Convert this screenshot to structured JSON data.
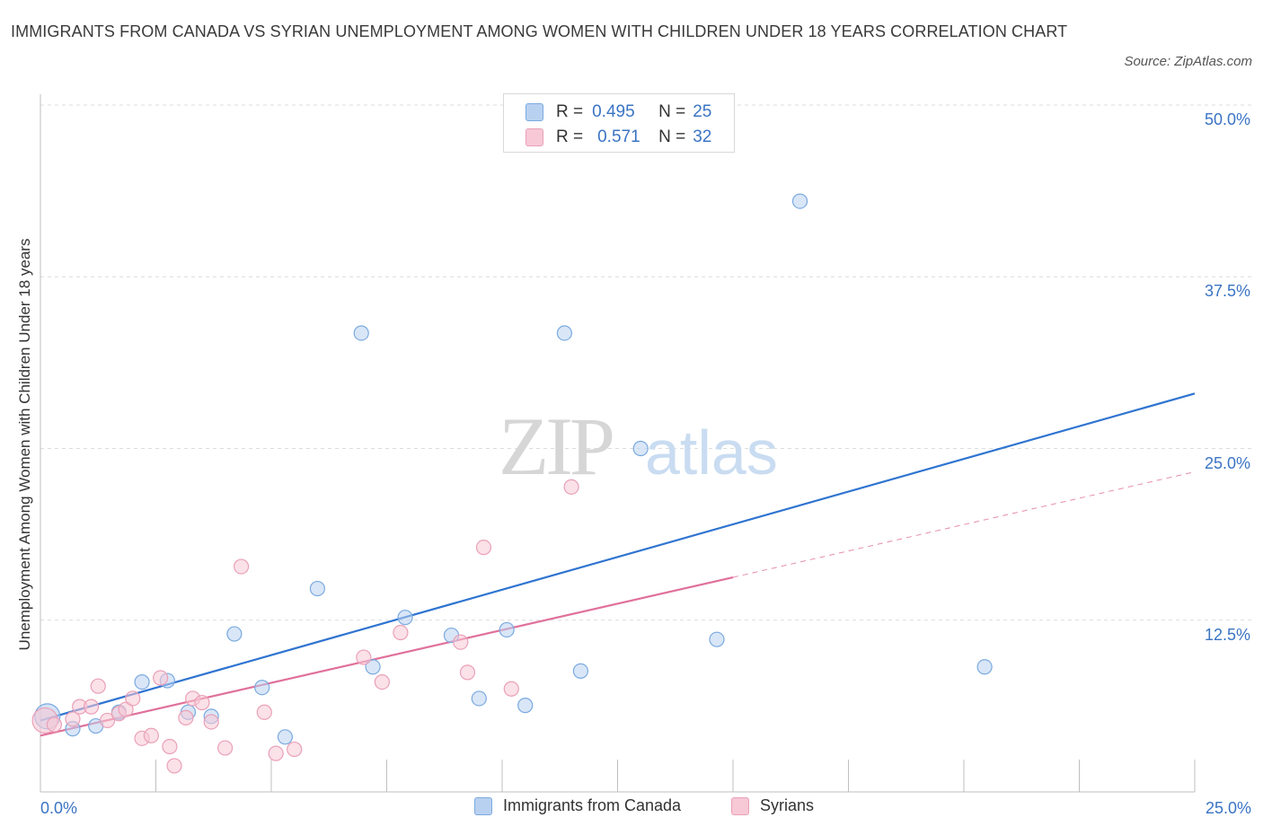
{
  "chart_data": {
    "type": "scatter",
    "title": "IMMIGRANTS FROM CANADA VS SYRIAN UNEMPLOYMENT AMONG WOMEN WITH CHILDREN UNDER 18 YEARS CORRELATION CHART",
    "source": "Source: ZipAtlas.com",
    "xlabel": "",
    "ylabel": "Unemployment Among Women with Children Under 18 years",
    "xlim": [
      0,
      25
    ],
    "ylim": [
      0,
      50
    ],
    "x_tick_labels": [
      "0.0%",
      "25.0%"
    ],
    "y_tick_labels": [
      "12.5%",
      "25.0%",
      "37.5%",
      "50.0%"
    ],
    "y_ticks": [
      12.5,
      25,
      37.5,
      50
    ],
    "x_minor_ticks": [
      2.5,
      5,
      7.5,
      10,
      12.5,
      15,
      17.5,
      20,
      22.5,
      25
    ],
    "grid": true,
    "watermark": {
      "zip": "ZIP",
      "atlas": "atlas"
    },
    "series": [
      {
        "name": "Immigrants from Canada",
        "color": "#7aaae0",
        "fill": "#b9d1f0",
        "line_color": "#2f74d0",
        "r_label": "R =",
        "r_value": "0.495",
        "n_label": "N =",
        "n_value": "25",
        "trend": {
          "x0": 0.0,
          "y0": 5.2,
          "x1": 25.0,
          "y1": 29.0,
          "dashed_from": null
        },
        "points": [
          {
            "x": 0.15,
            "y": 5.5,
            "big": true
          },
          {
            "x": 0.7,
            "y": 4.6
          },
          {
            "x": 1.2,
            "y": 4.8
          },
          {
            "x": 1.7,
            "y": 5.8
          },
          {
            "x": 2.2,
            "y": 8.0
          },
          {
            "x": 2.75,
            "y": 8.1
          },
          {
            "x": 3.2,
            "y": 5.8
          },
          {
            "x": 3.7,
            "y": 5.5
          },
          {
            "x": 4.2,
            "y": 11.5
          },
          {
            "x": 4.8,
            "y": 7.6
          },
          {
            "x": 5.3,
            "y": 4.0
          },
          {
            "x": 6.0,
            "y": 14.8
          },
          {
            "x": 6.95,
            "y": 33.4
          },
          {
            "x": 7.2,
            "y": 9.1
          },
          {
            "x": 7.9,
            "y": 12.7
          },
          {
            "x": 8.9,
            "y": 11.4
          },
          {
            "x": 9.5,
            "y": 6.8
          },
          {
            "x": 10.1,
            "y": 11.8
          },
          {
            "x": 10.5,
            "y": 6.3
          },
          {
            "x": 11.35,
            "y": 33.4
          },
          {
            "x": 11.7,
            "y": 8.8
          },
          {
            "x": 13.0,
            "y": 25.0
          },
          {
            "x": 14.65,
            "y": 11.1
          },
          {
            "x": 16.45,
            "y": 43.0
          },
          {
            "x": 20.45,
            "y": 9.1
          }
        ]
      },
      {
        "name": "Syrians",
        "color": "#eaa0b8",
        "fill": "#f7c8d6",
        "line_color": "#e0709a",
        "r_label": "R =",
        "r_value": "0.571",
        "n_label": "N =",
        "n_value": "32",
        "trend": {
          "x0": 0.0,
          "y0": 4.1,
          "x1": 25.0,
          "y1": 23.3,
          "dashed_from": 15.0
        },
        "points": [
          {
            "x": 0.1,
            "y": 5.2,
            "big": true
          },
          {
            "x": 0.3,
            "y": 4.9
          },
          {
            "x": 0.7,
            "y": 5.3
          },
          {
            "x": 0.85,
            "y": 6.2
          },
          {
            "x": 1.1,
            "y": 6.2
          },
          {
            "x": 1.25,
            "y": 7.7
          },
          {
            "x": 1.45,
            "y": 5.2
          },
          {
            "x": 1.7,
            "y": 5.7
          },
          {
            "x": 1.85,
            "y": 6.0
          },
          {
            "x": 2.0,
            "y": 6.8
          },
          {
            "x": 2.2,
            "y": 3.9
          },
          {
            "x": 2.4,
            "y": 4.1
          },
          {
            "x": 2.6,
            "y": 8.3
          },
          {
            "x": 2.8,
            "y": 3.3
          },
          {
            "x": 2.9,
            "y": 1.9
          },
          {
            "x": 3.15,
            "y": 5.4
          },
          {
            "x": 3.3,
            "y": 6.8
          },
          {
            "x": 3.5,
            "y": 6.5
          },
          {
            "x": 3.7,
            "y": 5.1
          },
          {
            "x": 4.0,
            "y": 3.2
          },
          {
            "x": 4.35,
            "y": 16.4
          },
          {
            "x": 4.85,
            "y": 5.8
          },
          {
            "x": 5.1,
            "y": 2.8
          },
          {
            "x": 5.5,
            "y": 3.1
          },
          {
            "x": 7.0,
            "y": 9.8
          },
          {
            "x": 7.4,
            "y": 8.0
          },
          {
            "x": 7.8,
            "y": 11.6
          },
          {
            "x": 9.1,
            "y": 10.9
          },
          {
            "x": 9.25,
            "y": 8.7
          },
          {
            "x": 9.6,
            "y": 17.8
          },
          {
            "x": 10.2,
            "y": 7.5
          },
          {
            "x": 11.5,
            "y": 22.2
          }
        ]
      }
    ]
  }
}
